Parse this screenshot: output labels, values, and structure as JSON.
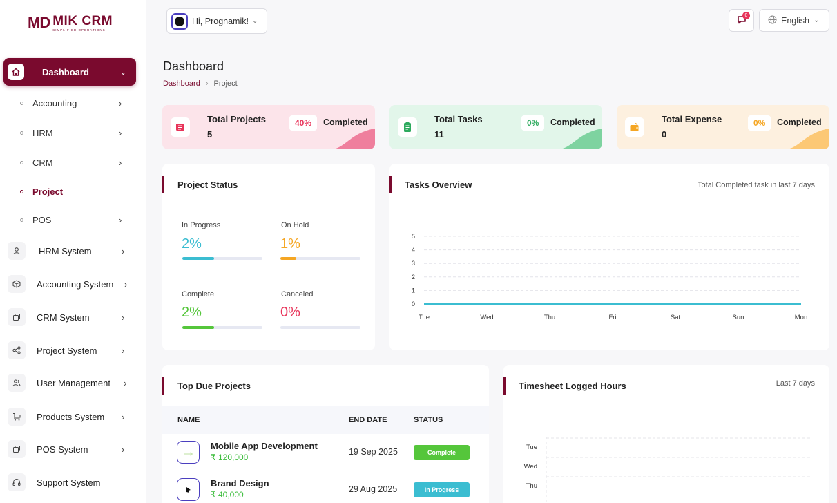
{
  "app": {
    "logo_mark": "MD",
    "logo_name": "MIK CRM",
    "logo_tagline": "SIMPLIFIED OPERATIONS"
  },
  "topbar": {
    "greeting": "Hi, Prognamik!",
    "notification_count": "0",
    "language": "English"
  },
  "sidebar": {
    "active": {
      "label": "Dashboard"
    },
    "sub_items": [
      {
        "label": "Accounting"
      },
      {
        "label": "HRM"
      },
      {
        "label": "CRM"
      },
      {
        "label": "Project"
      },
      {
        "label": "POS"
      }
    ],
    "systems": [
      {
        "label": "HRM System"
      },
      {
        "label": "Accounting System"
      },
      {
        "label": "CRM System"
      },
      {
        "label": "Project System"
      },
      {
        "label": "User Management"
      },
      {
        "label": "Products System"
      },
      {
        "label": "POS System"
      },
      {
        "label": "Support System"
      }
    ]
  },
  "header": {
    "title": "Dashboard",
    "breadcrumb": [
      "Dashboard",
      "Project"
    ]
  },
  "stats": [
    {
      "title": "Total Projects",
      "value": "5",
      "percent": "40%",
      "percent_label": "Completed",
      "color": "#e8345a",
      "bg": "#fce4ea"
    },
    {
      "title": "Total Tasks",
      "value": "11",
      "percent": "0%",
      "percent_label": "Completed",
      "color": "#2eaa5e",
      "bg": "#e2f6ea"
    },
    {
      "title": "Total Expense",
      "value": "0",
      "percent": "0%",
      "percent_label": "Completed",
      "color": "#f5a623",
      "bg": "#fdf0df"
    }
  ],
  "project_status": {
    "title": "Project Status",
    "items": [
      {
        "label": "In Progress",
        "value": "2%",
        "fraction": 0.4,
        "color": "#3bbdd1"
      },
      {
        "label": "On Hold",
        "value": "1%",
        "fraction": 0.2,
        "color": "#f5a623"
      },
      {
        "label": "Complete",
        "value": "2%",
        "fraction": 0.4,
        "color": "#55c63b"
      },
      {
        "label": "Canceled",
        "value": "0%",
        "fraction": 0.0,
        "color": "#e8345a"
      }
    ]
  },
  "tasks_overview": {
    "title": "Tasks Overview",
    "subtitle": "Total Completed task in last 7 days",
    "chart_data": {
      "type": "line",
      "x": [
        "Tue",
        "Wed",
        "Thu",
        "Fri",
        "Sat",
        "Sun",
        "Mon"
      ],
      "series": [
        {
          "values": [
            0,
            0,
            0,
            0,
            0,
            0,
            0
          ]
        }
      ],
      "ylim": [
        0,
        5
      ],
      "yticks": [
        "0",
        "1",
        "2",
        "3",
        "4",
        "5"
      ],
      "grid": true,
      "color": "#3bbdd1"
    }
  },
  "top_due": {
    "title": "Top Due Projects",
    "columns": [
      "NAME",
      "END DATE",
      "STATUS"
    ],
    "rows": [
      {
        "name": "Mobile App Development",
        "price": "₹ 120,000",
        "end_date": "19 Sep 2025",
        "status": "Complete",
        "status_color": "#55c63b"
      },
      {
        "name": "Brand Design",
        "price": "₹ 40,000",
        "end_date": "29 Aug 2025",
        "status": "In Progress",
        "status_color": "#3bbdd1"
      }
    ]
  },
  "timesheet": {
    "title": "Timesheet Logged Hours",
    "subtitle": "Last 7 days",
    "chart_data": {
      "type": "bar",
      "orientation": "horizontal",
      "categories_visible": [
        "Tue",
        "Wed",
        "Thu"
      ],
      "grid": true
    }
  }
}
